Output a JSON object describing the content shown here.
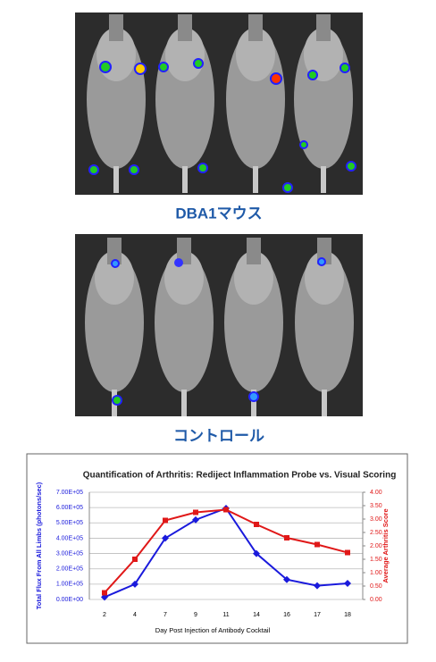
{
  "labels": {
    "top": "DBA1マウス",
    "bottom": "コントロール"
  },
  "chart_data": {
    "type": "line",
    "title": "Quantification of Arthritis:  Rediject Inflammation Probe vs. Visual Scoring",
    "x_label": "Day Post Injection of Antibody Cocktail",
    "y_label": "Total Flux From All Limbs (photons/sec)",
    "y2_label": "Average Arthritis Score",
    "categories": [
      "2",
      "4",
      "7",
      "9",
      "11",
      "14",
      "16",
      "17",
      "18"
    ],
    "series": [
      {
        "color": "#1a1adc",
        "marker": "diamond",
        "values": [
          15000,
          100000,
          400000,
          520000,
          595000,
          300000,
          130000,
          90000,
          105000
        ]
      },
      {
        "color": "#e01818",
        "marker": "square",
        "axis": "y2",
        "values": [
          0.25,
          1.5,
          2.95,
          3.25,
          3.35,
          2.8,
          2.3,
          2.05,
          1.75
        ]
      }
    ],
    "ylim": [
      0,
      700000
    ],
    "yticks": [
      {
        "value": 0,
        "label": "0.00E+00"
      },
      {
        "value": 100000,
        "label": "1.00E+05"
      },
      {
        "value": 200000,
        "label": "2.00E+05"
      },
      {
        "value": 300000,
        "label": "3.00E+05"
      },
      {
        "value": 400000,
        "label": "4.00E+05"
      },
      {
        "value": 500000,
        "label": "5.00E+05"
      },
      {
        "value": 600000,
        "label": "6.00E+05"
      },
      {
        "value": 700000,
        "label": "7.00E+05"
      }
    ],
    "y2lim": [
      0,
      4
    ],
    "y2ticks": [
      {
        "value": 0,
        "label": "0.00"
      },
      {
        "value": 0.5,
        "label": "0.50"
      },
      {
        "value": 1,
        "label": "1.00"
      },
      {
        "value": 1.5,
        "label": "1.50"
      },
      {
        "value": 2,
        "label": "2.00"
      },
      {
        "value": 2.5,
        "label": "2.50"
      },
      {
        "value": 3,
        "label": "3.00"
      },
      {
        "value": 3.5,
        "label": "3.50"
      },
      {
        "value": 4,
        "label": "4.00"
      }
    ],
    "grid": true
  }
}
